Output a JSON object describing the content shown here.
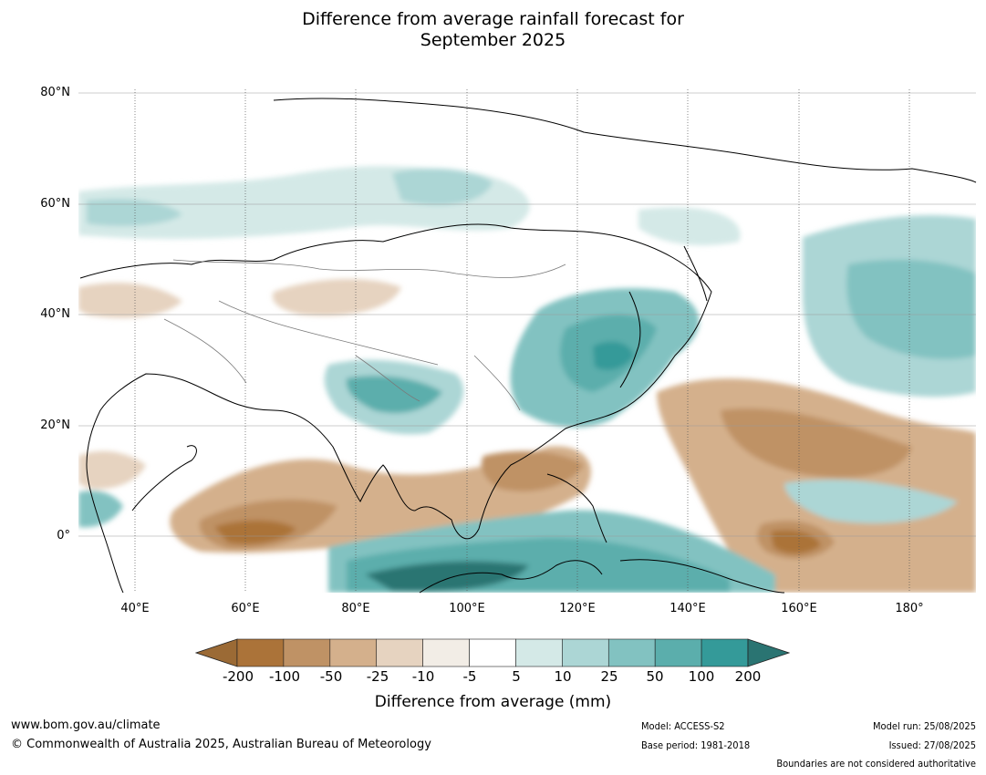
{
  "title_line1": "Difference from average rainfall forecast for",
  "title_line2": "September 2025",
  "map": {
    "lat_labels": [
      "80°N",
      "60°N",
      "40°N",
      "20°N",
      "0°"
    ],
    "lon_labels": [
      "40°E",
      "60°E",
      "80°E",
      "100°E",
      "120°E",
      "140°E",
      "160°E",
      "180°"
    ]
  },
  "colorbar": {
    "ticks": [
      "-200",
      "-100",
      "-50",
      "-25",
      "-10",
      "-5",
      "5",
      "10",
      "25",
      "50",
      "100",
      "200"
    ],
    "colors": [
      "#9b6a35",
      "#ab7339",
      "#bf9265",
      "#d4b08c",
      "#e6d3c0",
      "#f2ede6",
      "#ffffff",
      "#d4e9e7",
      "#acd6d5",
      "#82c2c1",
      "#5baeac",
      "#349a99",
      "#2a7472"
    ],
    "label": "Difference from average (mm)"
  },
  "footer": {
    "website": "www.bom.gov.au/climate",
    "copyright": "© Commonwealth of Australia 2025, Australian Bureau of Meteorology",
    "model": "Model: ACCESS-S2",
    "base_period": "Base period: 1981-2018",
    "model_run": "Model run: 25/08/2025",
    "issued": "Issued: 27/08/2025",
    "disclaimer": "Boundaries are not considered authoritative"
  }
}
